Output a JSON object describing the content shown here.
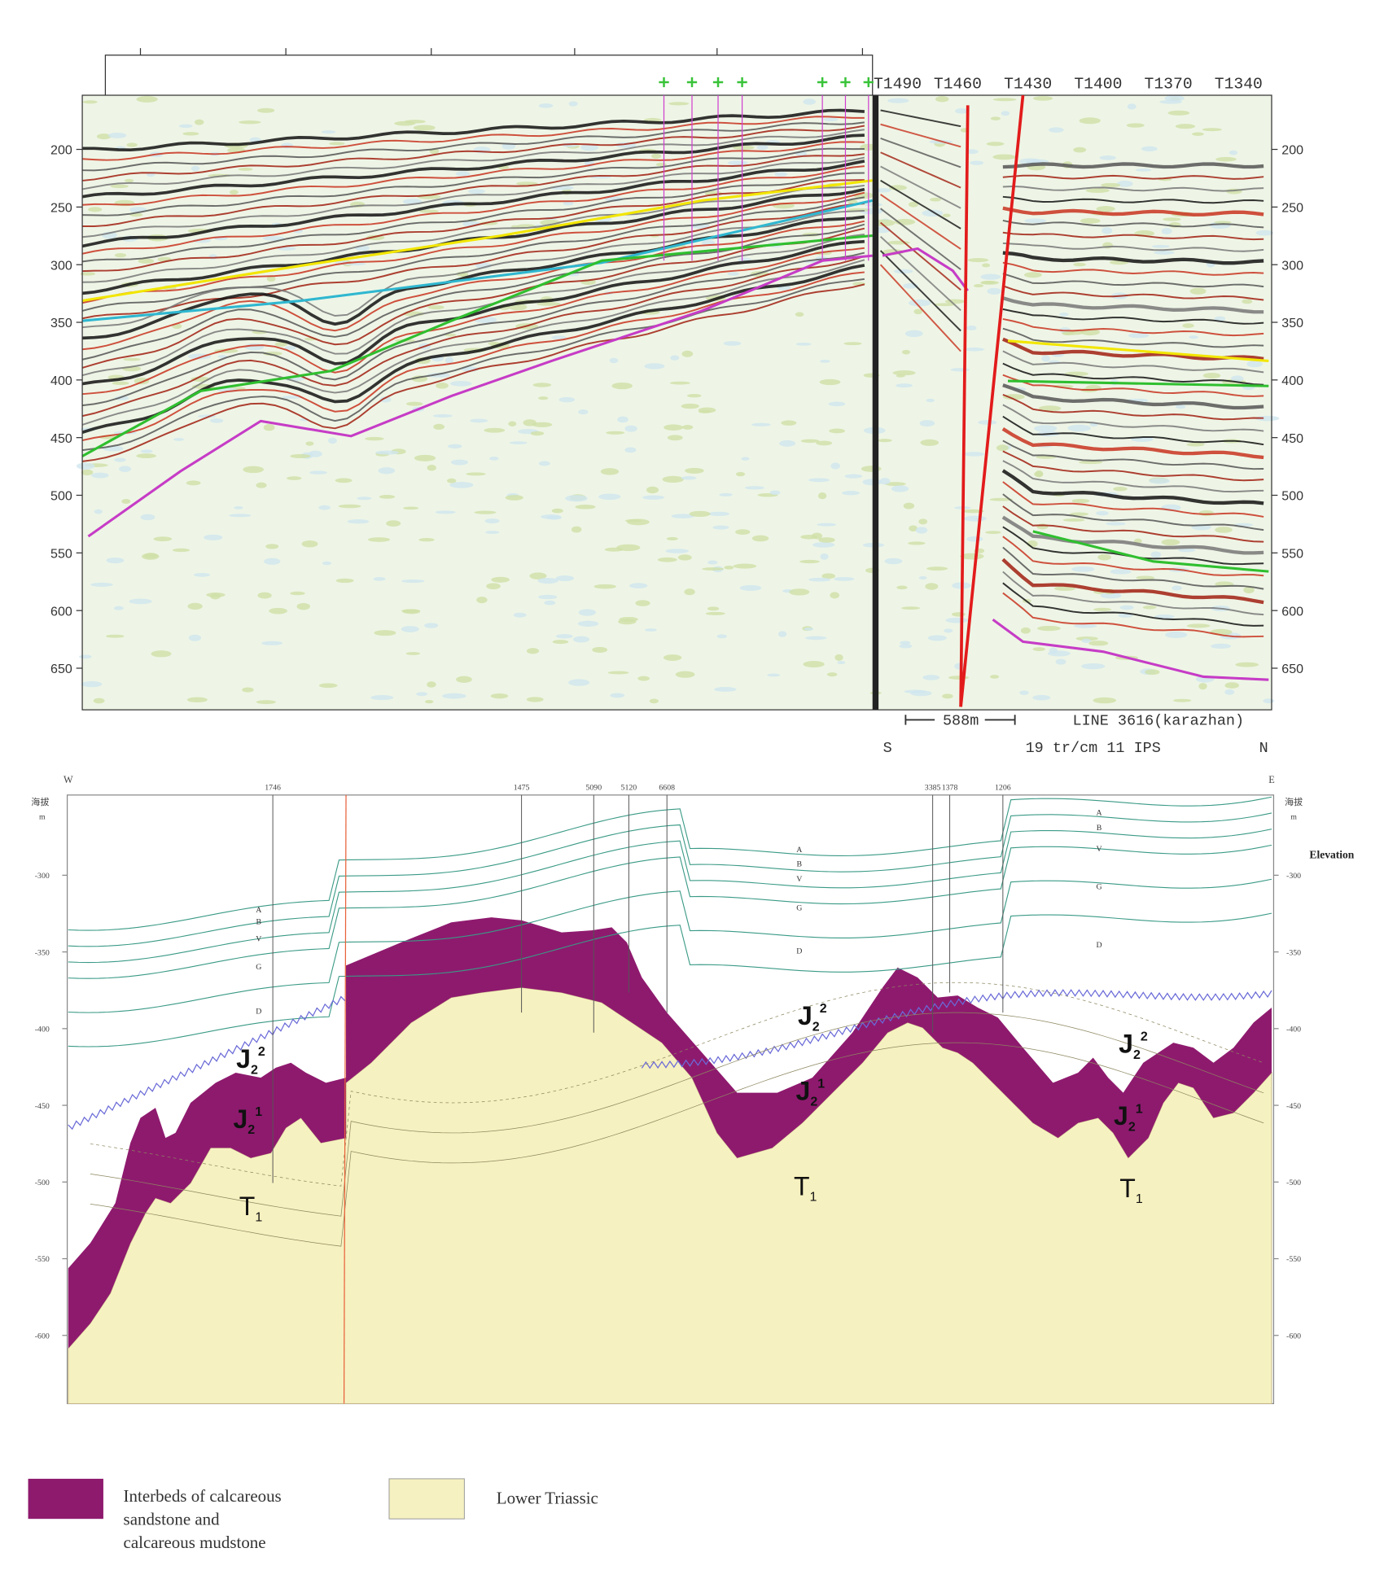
{
  "seismic_section": {
    "trace_labels": [
      "T1490",
      "T1460",
      "T1430",
      "T1400",
      "T1370",
      "T1340"
    ],
    "depth_ticks": [
      200,
      250,
      300,
      350,
      400,
      450,
      500,
      550,
      600,
      650
    ],
    "scale_bar": "588m",
    "line_name": "LINE 3616(karazhan)",
    "recording": "19 tr/cm 11 IPS",
    "south": "S",
    "north": "N"
  },
  "cross_section": {
    "west": "W",
    "east": "E",
    "wells": [
      "1746",
      "1475",
      "5090",
      "5120",
      "6608",
      "3385",
      "1378",
      "1206"
    ],
    "elevation_unit_cn": "海拔",
    "elevation_unit": "m",
    "elevation_label": "Elevation",
    "elevation_ticks": [
      -300,
      -350,
      -400,
      -450,
      -500,
      -550,
      -600
    ],
    "horizons": [
      "A",
      "B",
      "V",
      "G",
      "D"
    ],
    "formations": [
      {
        "symbol": "J",
        "subscript": "2",
        "superscript": "2"
      },
      {
        "symbol": "J",
        "subscript": "2",
        "superscript": "1"
      },
      {
        "symbol": "T",
        "subscript": "1"
      }
    ]
  },
  "legend": [
    {
      "lines": [
        "Interbeds of calcareous",
        "sandstone and",
        "calcareous mudstone"
      ]
    },
    {
      "lines": [
        "Lower Triassic"
      ]
    }
  ]
}
